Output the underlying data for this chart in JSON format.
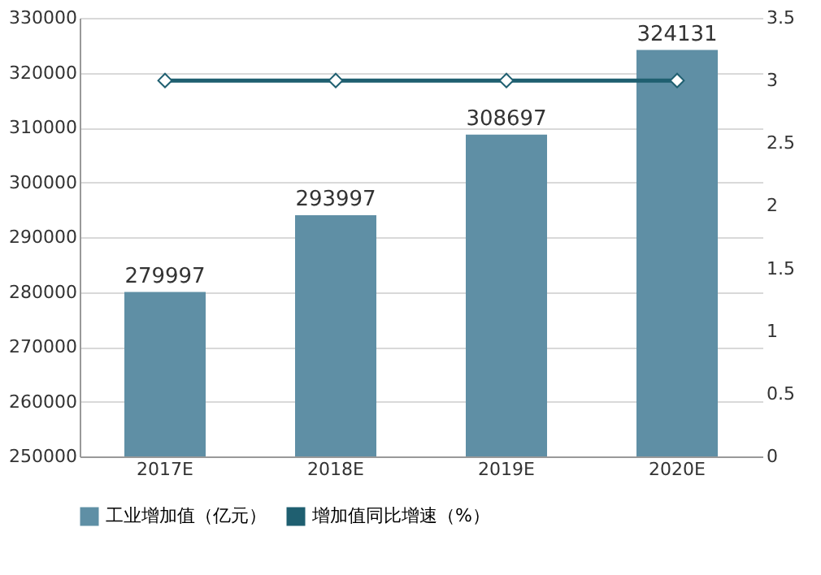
{
  "chart_data": {
    "type": "bar",
    "categories": [
      "2017E",
      "2018E",
      "2019E",
      "2020E"
    ],
    "series": [
      {
        "name": "工业增加值（亿元）",
        "color": "#5f8fa5",
        "values": [
          279997,
          293997,
          308697,
          324131
        ],
        "value_labels": [
          "279997",
          "293997",
          "308697",
          "324131"
        ]
      },
      {
        "name": "增加值同比增速（%）",
        "color": "#1f5f70",
        "values": [
          3,
          3,
          3,
          3
        ],
        "type": "line",
        "axis": "y2",
        "marker": "diamond"
      }
    ],
    "ylim": [
      250000,
      330000
    ],
    "yticks": [
      250000,
      260000,
      270000,
      280000,
      290000,
      300000,
      310000,
      320000,
      330000
    ],
    "y2lim": [
      0,
      3.5
    ],
    "y2ticks": [
      0,
      0.5,
      1,
      1.5,
      2,
      2.5,
      3,
      3.5
    ],
    "grid": "y",
    "legend": "bottom"
  }
}
